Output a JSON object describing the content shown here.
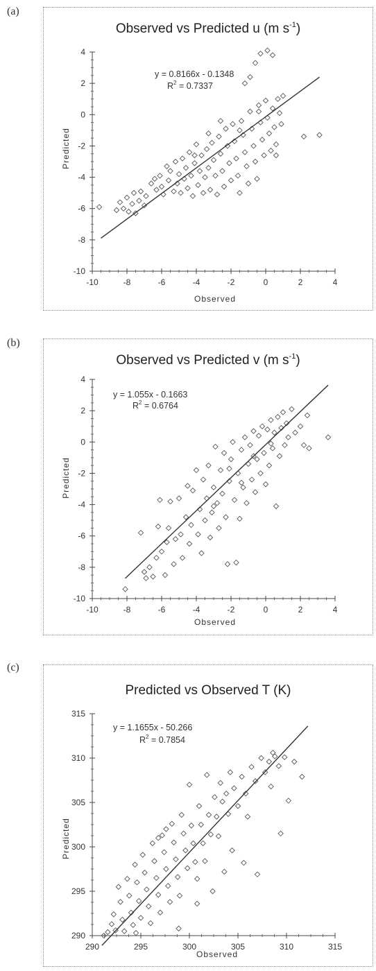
{
  "panels": [
    {
      "letter": "(a)"
    },
    {
      "letter": "(b)"
    },
    {
      "letter": "(c)"
    }
  ],
  "chart_data": [
    {
      "type": "scatter",
      "title_main": "Observed vs Predicted u (m s",
      "title_sup": "-1",
      "title_end": ")",
      "xlabel": "Observed",
      "ylabel": "Predicted",
      "xlim": [
        -10,
        4
      ],
      "ylim": [
        -10,
        4
      ],
      "xticks": [
        -10,
        -8,
        -6,
        -4,
        -2,
        0,
        2,
        4
      ],
      "yticks": [
        -10,
        -8,
        -6,
        -4,
        -2,
        0,
        2,
        4
      ],
      "grid": false,
      "equation": "y = 0.8166x - 0.1348",
      "r2_label": "R",
      "r2_sup": "2",
      "r2_value": " = 0.7337",
      "trendline": {
        "slope": 0.8166,
        "intercept": -0.1348,
        "x_range": [
          -9.5,
          3.1
        ]
      },
      "points": [
        [
          -9.6,
          -5.9
        ],
        [
          -8.6,
          -6.1
        ],
        [
          -8.4,
          -5.6
        ],
        [
          -8.2,
          -6.0
        ],
        [
          -8.0,
          -5.3
        ],
        [
          -7.9,
          -6.2
        ],
        [
          -7.7,
          -5.7
        ],
        [
          -7.6,
          -5.0
        ],
        [
          -7.5,
          -6.3
        ],
        [
          -7.3,
          -5.5
        ],
        [
          -7.2,
          -4.9
        ],
        [
          -7.0,
          -5.8
        ],
        [
          -6.9,
          -5.2
        ],
        [
          -6.6,
          -4.4
        ],
        [
          -6.4,
          -4.1
        ],
        [
          -6.3,
          -4.8
        ],
        [
          -6.1,
          -3.9
        ],
        [
          -6.0,
          -4.6
        ],
        [
          -5.9,
          -5.1
        ],
        [
          -5.7,
          -3.3
        ],
        [
          -5.6,
          -4.2
        ],
        [
          -5.5,
          -3.6
        ],
        [
          -5.3,
          -4.9
        ],
        [
          -5.2,
          -3.0
        ],
        [
          -5.1,
          -4.4
        ],
        [
          -5.0,
          -3.8
        ],
        [
          -4.9,
          -5.0
        ],
        [
          -4.8,
          -2.8
        ],
        [
          -4.7,
          -4.1
        ],
        [
          -4.6,
          -3.4
        ],
        [
          -4.5,
          -4.7
        ],
        [
          -4.4,
          -2.4
        ],
        [
          -4.3,
          -3.9
        ],
        [
          -4.2,
          -5.2
        ],
        [
          -4.1,
          -3.1
        ],
        [
          -4.0,
          -1.9
        ],
        [
          -3.9,
          -4.5
        ],
        [
          -3.8,
          -3.6
        ],
        [
          -3.7,
          -2.6
        ],
        [
          -3.6,
          -5.0
        ],
        [
          -3.5,
          -4.0
        ],
        [
          -3.4,
          -2.2
        ],
        [
          -3.3,
          -3.4
        ],
        [
          -3.2,
          -4.8
        ],
        [
          -3.1,
          -1.8
        ],
        [
          -3.0,
          -2.9
        ],
        [
          -2.9,
          -3.9
        ],
        [
          -2.8,
          -5.1
        ],
        [
          -2.7,
          -1.4
        ],
        [
          -2.6,
          -2.5
        ],
        [
          -2.5,
          -3.6
        ],
        [
          -2.4,
          -4.6
        ],
        [
          -2.3,
          -0.9
        ],
        [
          -2.2,
          -2.0
        ],
        [
          -2.1,
          -3.1
        ],
        [
          -2.0,
          -4.2
        ],
        [
          -1.9,
          -0.6
        ],
        [
          -1.8,
          -1.7
        ],
        [
          -1.7,
          -2.8
        ],
        [
          -1.6,
          -3.9
        ],
        [
          -1.5,
          -5.0
        ],
        [
          -1.4,
          -0.4
        ],
        [
          -1.3,
          -1.3
        ],
        [
          -1.2,
          -2.4
        ],
        [
          -1.1,
          -3.3
        ],
        [
          -1.0,
          -4.4
        ],
        [
          -0.9,
          0.2
        ],
        [
          -0.8,
          -0.9
        ],
        [
          -0.7,
          -2.0
        ],
        [
          -0.6,
          -3.0
        ],
        [
          -0.5,
          -4.1
        ],
        [
          -0.4,
          0.6
        ],
        [
          -0.3,
          -0.5
        ],
        [
          -0.2,
          -1.6
        ],
        [
          -0.1,
          -2.6
        ],
        [
          0.0,
          0.9
        ],
        [
          0.1,
          -0.2
        ],
        [
          0.2,
          -1.2
        ],
        [
          0.3,
          -2.3
        ],
        [
          0.4,
          0.4
        ],
        [
          0.5,
          -0.8
        ],
        [
          0.6,
          -1.9
        ],
        [
          0.7,
          1.0
        ],
        [
          0.8,
          0.1
        ],
        [
          0.9,
          -0.6
        ],
        [
          1.0,
          1.2
        ],
        [
          -0.6,
          3.3
        ],
        [
          -0.9,
          2.4
        ],
        [
          -0.3,
          3.9
        ],
        [
          0.1,
          4.1
        ],
        [
          0.4,
          3.8
        ],
        [
          -1.2,
          2.0
        ],
        [
          0.6,
          -2.6
        ],
        [
          2.2,
          -1.4
        ],
        [
          3.1,
          -1.3
        ],
        [
          -0.4,
          0.2
        ],
        [
          -1.5,
          -1.0
        ],
        [
          -2.6,
          -0.4
        ],
        [
          -3.3,
          -1.2
        ],
        [
          -4.1,
          -2.6
        ]
      ]
    },
    {
      "type": "scatter",
      "title_main": "Observed vs Predicted v (m s",
      "title_sup": "-1",
      "title_end": ")",
      "xlabel": "Observed",
      "ylabel": "Predicted",
      "xlim": [
        -10,
        4
      ],
      "ylim": [
        -10,
        4
      ],
      "xticks": [
        -10,
        -8,
        -6,
        -4,
        -2,
        0,
        2,
        4
      ],
      "yticks": [
        -10,
        -8,
        -6,
        -4,
        -2,
        0,
        2,
        4
      ],
      "grid": false,
      "equation": "y = 1.055x - 0.1663",
      "r2_label": "R",
      "r2_sup": "2",
      "r2_value": " = 0.6764",
      "trendline": {
        "slope": 1.055,
        "intercept": -0.1663,
        "x_range": [
          -8.1,
          3.6
        ]
      },
      "points": [
        [
          -8.1,
          -9.4
        ],
        [
          -7.2,
          -5.8
        ],
        [
          -7.0,
          -8.3
        ],
        [
          -6.9,
          -8.7
        ],
        [
          -6.7,
          -8.0
        ],
        [
          -6.5,
          -8.6
        ],
        [
          -6.3,
          -7.4
        ],
        [
          -6.2,
          -5.4
        ],
        [
          -6.1,
          -3.7
        ],
        [
          -6.0,
          -7.0
        ],
        [
          -5.8,
          -8.5
        ],
        [
          -5.7,
          -6.4
        ],
        [
          -5.6,
          -5.5
        ],
        [
          -5.5,
          -3.8
        ],
        [
          -5.3,
          -7.8
        ],
        [
          -5.2,
          -6.2
        ],
        [
          -5.0,
          -3.6
        ],
        [
          -4.9,
          -5.9
        ],
        [
          -4.8,
          -7.4
        ],
        [
          -4.6,
          -4.8
        ],
        [
          -4.5,
          -2.8
        ],
        [
          -4.4,
          -6.5
        ],
        [
          -4.3,
          -5.3
        ],
        [
          -4.2,
          -3.1
        ],
        [
          -4.0,
          -1.8
        ],
        [
          -3.9,
          -5.9
        ],
        [
          -3.8,
          -4.3
        ],
        [
          -3.7,
          -7.1
        ],
        [
          -3.6,
          -2.4
        ],
        [
          -3.5,
          -5.0
        ],
        [
          -3.4,
          -3.6
        ],
        [
          -3.3,
          -1.5
        ],
        [
          -3.2,
          -6.1
        ],
        [
          -3.1,
          -4.5
        ],
        [
          -3.0,
          -2.9
        ],
        [
          -2.9,
          -0.3
        ],
        [
          -2.8,
          -3.9
        ],
        [
          -2.7,
          -5.5
        ],
        [
          -2.6,
          -1.8
        ],
        [
          -2.5,
          -3.3
        ],
        [
          -2.4,
          -0.7
        ],
        [
          -2.3,
          -4.8
        ],
        [
          -2.2,
          -7.8
        ],
        [
          -2.1,
          -2.5
        ],
        [
          -2.0,
          -1.1
        ],
        [
          -1.9,
          0.0
        ],
        [
          -1.8,
          -3.7
        ],
        [
          -1.7,
          -7.7
        ],
        [
          -1.6,
          -2.0
        ],
        [
          -1.5,
          -4.9
        ],
        [
          -1.4,
          -0.5
        ],
        [
          -1.3,
          -2.9
        ],
        [
          -1.2,
          0.3
        ],
        [
          -1.1,
          -3.9
        ],
        [
          -1.0,
          -1.4
        ],
        [
          -0.9,
          -0.2
        ],
        [
          -0.8,
          -2.4
        ],
        [
          -0.7,
          0.7
        ],
        [
          -0.6,
          -3.2
        ],
        [
          -0.5,
          -1.1
        ],
        [
          -0.4,
          0.4
        ],
        [
          -0.3,
          -2.0
        ],
        [
          -0.2,
          1.0
        ],
        [
          -0.1,
          -0.7
        ],
        [
          0.0,
          -2.7
        ],
        [
          0.1,
          0.8
        ],
        [
          0.2,
          -1.5
        ],
        [
          0.3,
          1.4
        ],
        [
          0.4,
          -0.4
        ],
        [
          0.5,
          0.6
        ],
        [
          0.6,
          -4.1
        ],
        [
          0.7,
          1.6
        ],
        [
          0.8,
          -0.9
        ],
        [
          0.9,
          0.9
        ],
        [
          1.0,
          1.9
        ],
        [
          1.1,
          -0.2
        ],
        [
          1.2,
          1.2
        ],
        [
          1.3,
          0.3
        ],
        [
          1.5,
          2.1
        ],
        [
          1.7,
          0.6
        ],
        [
          2.0,
          1.0
        ],
        [
          2.2,
          -0.2
        ],
        [
          2.4,
          1.7
        ],
        [
          2.5,
          -0.4
        ],
        [
          3.6,
          0.3
        ],
        [
          -1.4,
          -2.6
        ],
        [
          -2.1,
          -1.7
        ],
        [
          -3.0,
          -4.1
        ],
        [
          -0.7,
          -0.9
        ],
        [
          0.3,
          -0.1
        ]
      ]
    },
    {
      "type": "scatter",
      "title_main": "Predicted vs Observed T (K)",
      "title_sup": "",
      "title_end": "",
      "xlabel": "Observed",
      "ylabel": "Predicted",
      "xlim": [
        290,
        315
      ],
      "ylim": [
        290,
        315
      ],
      "xticks": [
        290,
        295,
        300,
        305,
        310,
        315
      ],
      "yticks": [
        290,
        295,
        300,
        305,
        310,
        315
      ],
      "grid": false,
      "equation": "y = 1.1655x - 50.266",
      "r2_label": "R",
      "r2_sup": "2",
      "r2_value": " = 0.7854",
      "trendline": {
        "slope": 1.1655,
        "intercept": -50.266,
        "x_range": [
          291.0,
          312.2
        ]
      },
      "points": [
        [
          291.2,
          290.0
        ],
        [
          291.6,
          290.4
        ],
        [
          292.0,
          291.3
        ],
        [
          292.2,
          292.4
        ],
        [
          292.4,
          290.6
        ],
        [
          292.7,
          295.5
        ],
        [
          292.9,
          293.8
        ],
        [
          293.1,
          291.8
        ],
        [
          293.3,
          290.5
        ],
        [
          293.6,
          296.4
        ],
        [
          293.8,
          294.5
        ],
        [
          294.0,
          292.6
        ],
        [
          294.2,
          291.2
        ],
        [
          294.4,
          298.0
        ],
        [
          294.6,
          296.0
        ],
        [
          294.8,
          293.9
        ],
        [
          295.0,
          292.0
        ],
        [
          295.2,
          299.1
        ],
        [
          295.4,
          297.1
        ],
        [
          295.6,
          295.2
        ],
        [
          295.8,
          293.3
        ],
        [
          296.0,
          291.4
        ],
        [
          296.2,
          300.4
        ],
        [
          296.4,
          298.4
        ],
        [
          296.6,
          296.5
        ],
        [
          296.8,
          294.6
        ],
        [
          297.0,
          292.6
        ],
        [
          297.2,
          301.3
        ],
        [
          297.4,
          299.4
        ],
        [
          297.6,
          297.5
        ],
        [
          297.8,
          295.6
        ],
        [
          298.0,
          293.8
        ],
        [
          298.2,
          302.6
        ],
        [
          298.4,
          300.5
        ],
        [
          298.6,
          298.6
        ],
        [
          298.8,
          296.6
        ],
        [
          299.0,
          294.5
        ],
        [
          299.2,
          303.6
        ],
        [
          299.4,
          301.5
        ],
        [
          299.6,
          299.6
        ],
        [
          299.8,
          297.6
        ],
        [
          300.0,
          307.0
        ],
        [
          300.2,
          302.4
        ],
        [
          300.4,
          300.4
        ],
        [
          300.6,
          298.3
        ],
        [
          300.8,
          296.4
        ],
        [
          301.0,
          304.6
        ],
        [
          301.2,
          302.5
        ],
        [
          301.4,
          300.4
        ],
        [
          301.6,
          298.4
        ],
        [
          301.8,
          308.1
        ],
        [
          302.0,
          303.6
        ],
        [
          302.2,
          301.4
        ],
        [
          302.4,
          295.0
        ],
        [
          302.6,
          305.6
        ],
        [
          302.8,
          303.4
        ],
        [
          303.0,
          301.2
        ],
        [
          303.2,
          307.2
        ],
        [
          303.4,
          305.1
        ],
        [
          303.6,
          297.2
        ],
        [
          303.8,
          306.0
        ],
        [
          304.0,
          303.7
        ],
        [
          304.2,
          308.4
        ],
        [
          304.4,
          299.6
        ],
        [
          304.6,
          306.6
        ],
        [
          305.0,
          304.6
        ],
        [
          305.4,
          307.9
        ],
        [
          305.6,
          298.2
        ],
        [
          305.8,
          306.0
        ],
        [
          306.0,
          303.4
        ],
        [
          306.4,
          309.0
        ],
        [
          306.8,
          307.4
        ],
        [
          307.0,
          296.9
        ],
        [
          307.4,
          310.0
        ],
        [
          307.8,
          308.4
        ],
        [
          308.2,
          309.6
        ],
        [
          308.4,
          306.8
        ],
        [
          308.8,
          310.2
        ],
        [
          309.2,
          309.1
        ],
        [
          309.4,
          301.5
        ],
        [
          309.8,
          310.1
        ],
        [
          310.2,
          305.2
        ],
        [
          310.8,
          309.6
        ],
        [
          311.6,
          307.9
        ],
        [
          308.6,
          310.6
        ],
        [
          297.6,
          302.0
        ],
        [
          296.8,
          301.0
        ],
        [
          298.9,
          290.8
        ],
        [
          294.5,
          290.3
        ],
        [
          300.8,
          293.6
        ]
      ]
    }
  ]
}
